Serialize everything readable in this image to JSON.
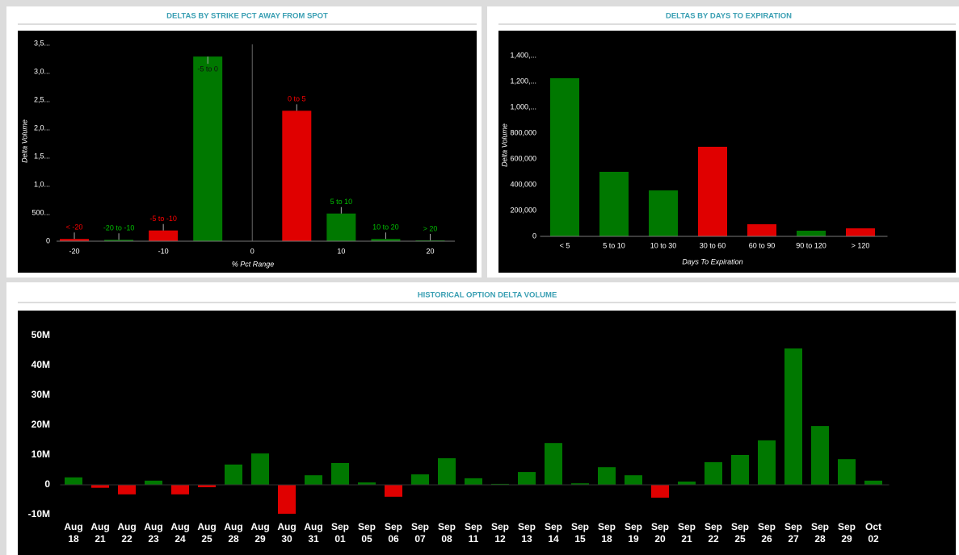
{
  "chart_data": [
    {
      "type": "bar",
      "title": "DELTAS BY STRIKE PCT AWAY FROM SPOT",
      "xlabel": "% Pct Range",
      "ylabel": "Delta Volume",
      "x": [
        -20,
        -15,
        -10,
        -5,
        5,
        10,
        15,
        20
      ],
      "labels": [
        "< -20",
        "-20 to -10",
        "-5 to -10",
        "-5 to 0",
        "0 to 5",
        "5 to 10",
        "10 to 20",
        "> 20"
      ],
      "values": [
        40000,
        25000,
        190000,
        3270000,
        2310000,
        490000,
        40000,
        15000
      ],
      "colors": [
        "#e00000",
        "#007800",
        "#e00000",
        "#007800",
        "#e00000",
        "#007800",
        "#007800",
        "#007800"
      ],
      "xlim": [
        -22,
        22.5
      ],
      "xticks": [
        -20,
        -10,
        0,
        10,
        20
      ],
      "vline": 0,
      "ylim": [
        0,
        3600000
      ],
      "yticks": [
        0,
        {
          "value": 500000,
          "label": "500..."
        },
        {
          "value": 1000000,
          "label": "1,0..."
        },
        {
          "value": 1500000,
          "label": "1,5..."
        },
        {
          "value": 2000000,
          "label": "2,0..."
        },
        {
          "value": 2500000,
          "label": "2,5..."
        },
        {
          "value": 3000000,
          "label": "3,0..."
        },
        {
          "value": 3500000,
          "label": "3,5..."
        }
      ],
      "grid": false
    },
    {
      "type": "bar",
      "title": "DELTAS BY DAYS TO EXPIRATION",
      "xlabel": "Days To Expiration",
      "ylabel": "Delta Volume",
      "categories": [
        "< 5",
        "5 to 10",
        "10 to 30",
        "30 to 60",
        "60 to 90",
        "90 to 120",
        "> 120"
      ],
      "values": [
        1225000,
        500000,
        356000,
        694000,
        94000,
        44000,
        62000
      ],
      "colors": [
        "#007800",
        "#007800",
        "#007800",
        "#e00000",
        "#e00000",
        "#007800",
        "#e00000"
      ],
      "ylim": [
        0,
        1450000
      ],
      "yticks": [
        0,
        {
          "value": 200000,
          "label": "200,000"
        },
        {
          "value": 400000,
          "label": "400,000"
        },
        {
          "value": 600000,
          "label": "600,000"
        },
        {
          "value": 800000,
          "label": "800,000"
        },
        {
          "value": 1000000,
          "label": "1,000,..."
        },
        {
          "value": 1200000,
          "label": "1,200,..."
        },
        {
          "value": 1400000,
          "label": "1,400,..."
        }
      ],
      "grid": false
    },
    {
      "type": "bar",
      "title": "HISTORICAL OPTION DELTA VOLUME",
      "categories": [
        [
          "Aug",
          "18"
        ],
        [
          "Aug",
          "21"
        ],
        [
          "Aug",
          "22"
        ],
        [
          "Aug",
          "23"
        ],
        [
          "Aug",
          "24"
        ],
        [
          "Aug",
          "25"
        ],
        [
          "Aug",
          "28"
        ],
        [
          "Aug",
          "29"
        ],
        [
          "Aug",
          "30"
        ],
        [
          "Aug",
          "31"
        ],
        [
          "Sep",
          "01"
        ],
        [
          "Sep",
          "05"
        ],
        [
          "Sep",
          "06"
        ],
        [
          "Sep",
          "07"
        ],
        [
          "Sep",
          "08"
        ],
        [
          "Sep",
          "11"
        ],
        [
          "Sep",
          "12"
        ],
        [
          "Sep",
          "13"
        ],
        [
          "Sep",
          "14"
        ],
        [
          "Sep",
          "15"
        ],
        [
          "Sep",
          "18"
        ],
        [
          "Sep",
          "19"
        ],
        [
          "Sep",
          "20"
        ],
        [
          "Sep",
          "21"
        ],
        [
          "Sep",
          "22"
        ],
        [
          "Sep",
          "25"
        ],
        [
          "Sep",
          "26"
        ],
        [
          "Sep",
          "27"
        ],
        [
          "Sep",
          "28"
        ],
        [
          "Sep",
          "29"
        ],
        [
          "Oct",
          "02"
        ]
      ],
      "values": [
        2500000,
        -1000000,
        -3200000,
        1400000,
        -3200000,
        -800000,
        6800000,
        10500000,
        -9700000,
        3200000,
        7300000,
        800000,
        -4000000,
        3500000,
        8900000,
        2200000,
        300000,
        4300000,
        14000000,
        500000,
        5900000,
        3200000,
        -4300000,
        1100000,
        7600000,
        10000000,
        14900000,
        45700000,
        19700000,
        8600000,
        1400000
      ],
      "positive_color": "#007800",
      "negative_color": "#e00000",
      "ylim": [
        -12000000,
        55000000
      ],
      "yticks": [
        {
          "value": -10000000,
          "label": "-10M"
        },
        0,
        {
          "value": 10000000,
          "label": "10M"
        },
        {
          "value": 20000000,
          "label": "20M"
        },
        {
          "value": 30000000,
          "label": "30M"
        },
        {
          "value": 40000000,
          "label": "40M"
        },
        {
          "value": 50000000,
          "label": "50M"
        }
      ],
      "grid": false
    }
  ]
}
